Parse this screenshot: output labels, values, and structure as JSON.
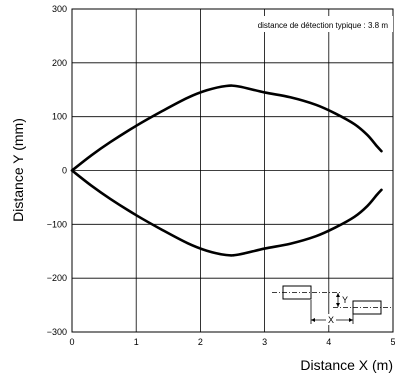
{
  "chart_data": {
    "type": "line",
    "xlabel": "Distance X (m)",
    "ylabel": "Distance Y (mm)",
    "xlim": [
      0,
      5
    ],
    "ylim": [
      -300,
      300
    ],
    "x_ticks": [
      "0",
      "1",
      "2",
      "3",
      "4",
      "5"
    ],
    "y_ticks": [
      "300",
      "200",
      "100",
      "0",
      "−100",
      "−200",
      "−300"
    ],
    "grid": true,
    "annotation": "distance de détection typique : 3.8 m",
    "diagram_labels": {
      "y": "Y",
      "x": "X"
    },
    "series": [
      {
        "values": [
          [
            0,
            0
          ],
          [
            0.3,
            28
          ],
          [
            0.6,
            53
          ],
          [
            1.0,
            83
          ],
          [
            1.4,
            110
          ],
          [
            1.8,
            135
          ],
          [
            2.1,
            149
          ],
          [
            2.4,
            157
          ],
          [
            2.6,
            156
          ],
          [
            3.0,
            145
          ],
          [
            3.4,
            136
          ],
          [
            3.8,
            122
          ],
          [
            4.1,
            106
          ],
          [
            4.4,
            86
          ],
          [
            4.6,
            66
          ],
          [
            4.75,
            45
          ],
          [
            4.82,
            36
          ]
        ]
      },
      {
        "values": [
          [
            0,
            0
          ],
          [
            0.3,
            -28
          ],
          [
            0.6,
            -53
          ],
          [
            1.0,
            -83
          ],
          [
            1.4,
            -110
          ],
          [
            1.8,
            -135
          ],
          [
            2.1,
            -149
          ],
          [
            2.4,
            -157
          ],
          [
            2.6,
            -156
          ],
          [
            3.0,
            -145
          ],
          [
            3.4,
            -136
          ],
          [
            3.8,
            -122
          ],
          [
            4.1,
            -106
          ],
          [
            4.4,
            -86
          ],
          [
            4.6,
            -66
          ],
          [
            4.75,
            -45
          ],
          [
            4.82,
            -36
          ]
        ]
      }
    ]
  }
}
